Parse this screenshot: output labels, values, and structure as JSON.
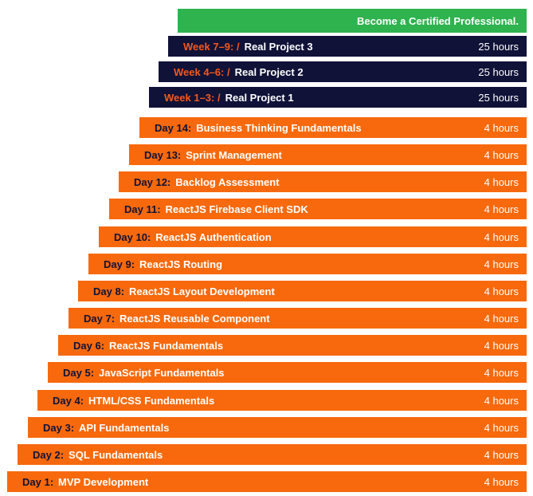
{
  "palette": {
    "green": "#2EB34E",
    "navy": "#101238",
    "orange": "#F7690C",
    "accent_orange": "#F4581C",
    "text_white": "#FFFFFF"
  },
  "header": {
    "label": "Become a Certified Professional."
  },
  "week_rows": [
    {
      "prefix": "Week 7–9: /",
      "title": "Real Project 3",
      "hours": "25 hours"
    },
    {
      "prefix": "Week 4–6: /",
      "title": "Real Project 2",
      "hours": "25 hours"
    },
    {
      "prefix": "Week 1–3: /",
      "title": "Real Project 1",
      "hours": "25 hours"
    }
  ],
  "day_rows": [
    {
      "prefix": "Day 14:",
      "title": "Business Thinking Fundamentals",
      "hours": "4 hours"
    },
    {
      "prefix": "Day 13:",
      "title": "Sprint Management",
      "hours": "4 hours"
    },
    {
      "prefix": "Day 12:",
      "title": "Backlog Assessment",
      "hours": "4 hours"
    },
    {
      "prefix": "Day 11:",
      "title": "ReactJS Firebase Client SDK",
      "hours": "4 hours"
    },
    {
      "prefix": "Day 10:",
      "title": "ReactJS Authentication",
      "hours": "4 hours"
    },
    {
      "prefix": "Day 9:",
      "title": "ReactJS Routing",
      "hours": "4 hours"
    },
    {
      "prefix": "Day 8:",
      "title": "ReactJS Layout Development",
      "hours": "4 hours"
    },
    {
      "prefix": "Day 7:",
      "title": "ReactJS Reusable Component",
      "hours": "4 hours"
    },
    {
      "prefix": "Day 6:",
      "title": "ReactJS Fundamentals",
      "hours": "4 hours"
    },
    {
      "prefix": "Day 5:",
      "title": "JavaScript Fundamentals",
      "hours": "4 hours"
    },
    {
      "prefix": "Day 4:",
      "title": "HTML/CSS Fundamentals",
      "hours": "4 hours"
    },
    {
      "prefix": "Day 3:",
      "title": "API Fundamentals",
      "hours": "4 hours"
    },
    {
      "prefix": "Day 2:",
      "title": "SQL Fundamentals",
      "hours": "4 hours"
    },
    {
      "prefix": "Day 1:",
      "title": "MVP Development",
      "hours": "4 hours"
    }
  ]
}
